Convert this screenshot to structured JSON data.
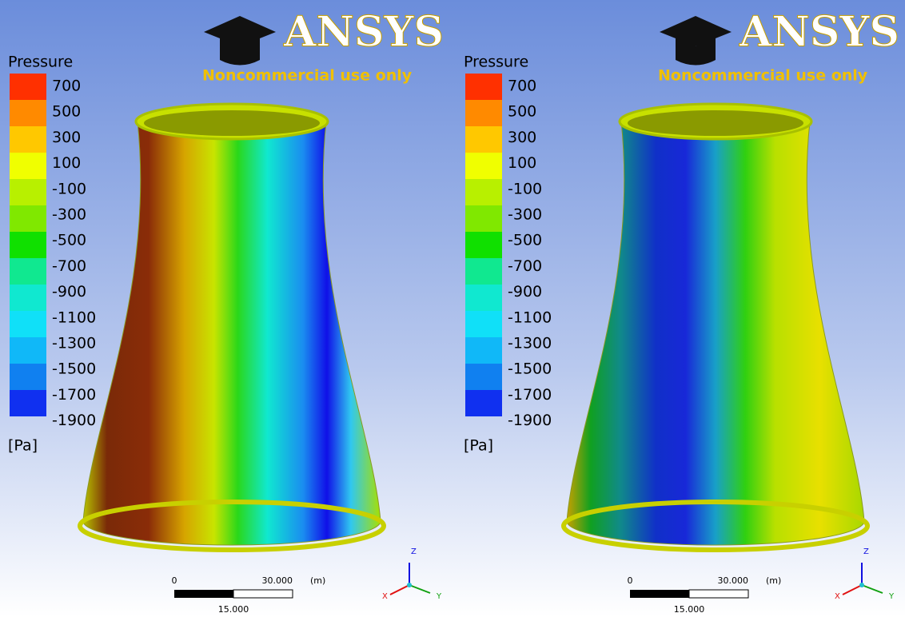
{
  "panels": [
    {
      "logo": {
        "brand": "ANSYS",
        "tagline": "Noncommercial use only"
      },
      "legend": {
        "title": "Pressure",
        "levels": [
          700,
          500,
          300,
          100,
          -100,
          -300,
          -500,
          -700,
          -900,
          -1100,
          -1300,
          -1500,
          -1700,
          -1900
        ],
        "unit": "[Pa]"
      },
      "scale_bar": {
        "start": "0",
        "end": "30.000",
        "unit": "(m)",
        "middle": "15.000"
      },
      "axes": {
        "z": "Z",
        "x": "X",
        "y": "Y"
      }
    },
    {
      "logo": {
        "brand": "ANSYS",
        "tagline": "Noncommercial use only"
      },
      "legend": {
        "title": "Pressure",
        "levels": [
          700,
          500,
          300,
          100,
          -100,
          -300,
          -500,
          -700,
          -900,
          -1100,
          -1300,
          -1500,
          -1700,
          -1900
        ],
        "unit": "[Pa]"
      },
      "scale_bar": {
        "start": "0",
        "end": "30.000",
        "unit": "(m)",
        "middle": "15.000"
      },
      "axes": {
        "z": "Z",
        "x": "X",
        "y": "Y"
      }
    }
  ]
}
